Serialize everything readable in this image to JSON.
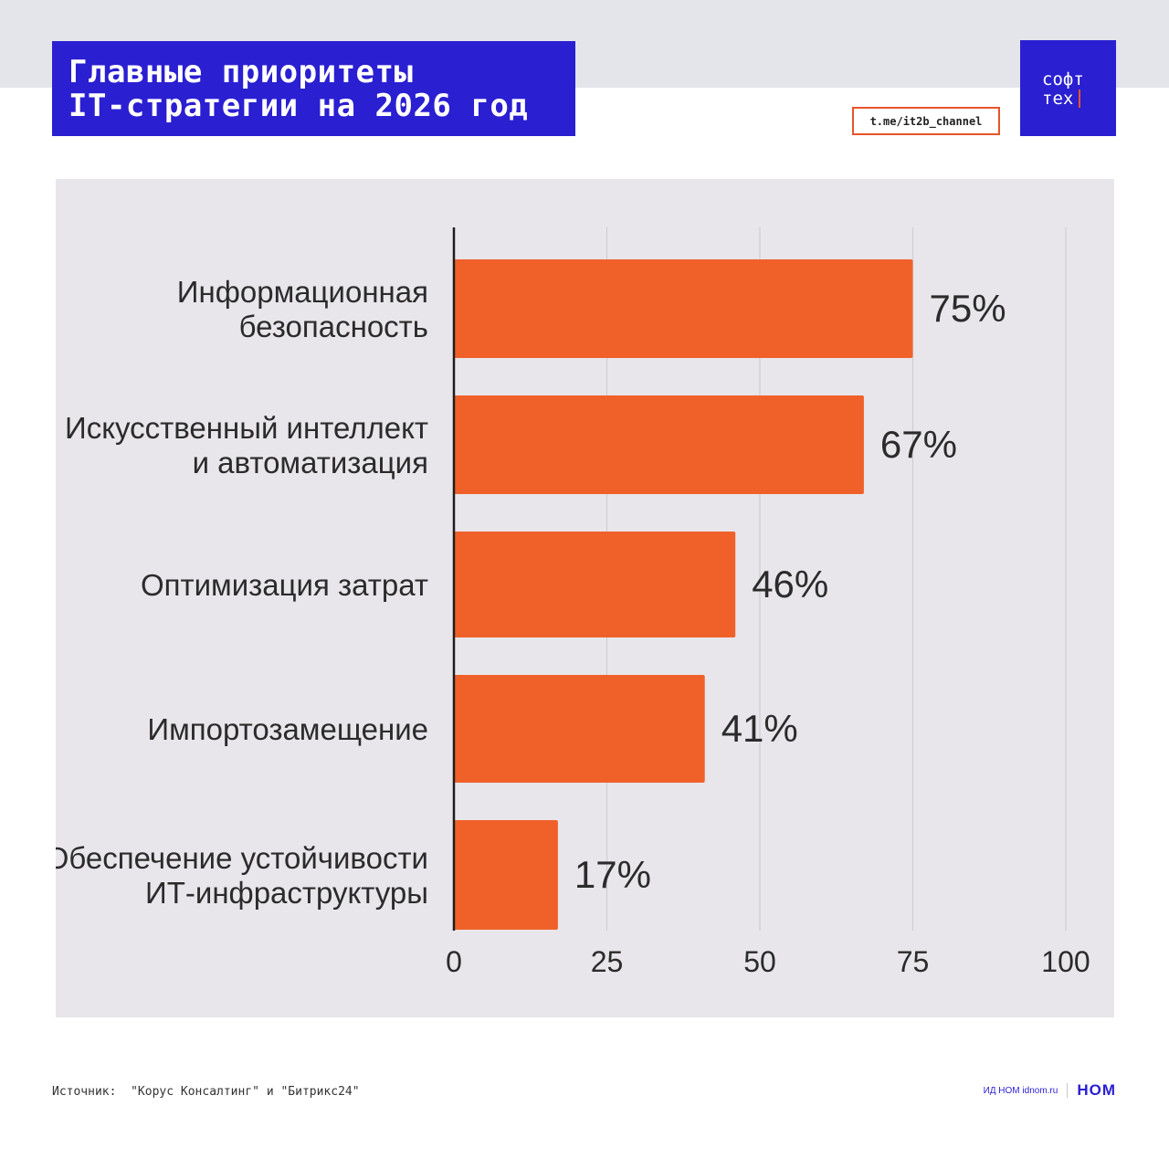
{
  "header": {
    "title_line1": "Главные приоритеты",
    "title_line2": "IT-стратегии на 2026 год",
    "channel": "t.me/it2b_channel",
    "logo_line1": "софт",
    "logo_line2": "тех"
  },
  "colors": {
    "brand": "#2a1fd1",
    "accent": "#e8542a",
    "bar": "#f0612a",
    "panel": "#e8e6ea"
  },
  "chart_data": {
    "type": "bar",
    "orientation": "horizontal",
    "categories": [
      [
        "Информационная",
        "безопасность"
      ],
      [
        "Искусственный интеллект",
        "и автоматизация"
      ],
      [
        "Оптимизация затрат"
      ],
      [
        "Импортозамещение"
      ],
      [
        "Обеспечение устойчивости",
        "ИТ-инфраструктуры"
      ]
    ],
    "values": [
      75,
      67,
      46,
      41,
      17
    ],
    "value_labels": [
      "75%",
      "67%",
      "46%",
      "41%",
      "17%"
    ],
    "xlim": [
      0,
      100
    ],
    "xticks": [
      0,
      25,
      50,
      75,
      100
    ],
    "grid": true
  },
  "footer": {
    "source_label": "Источник:",
    "source_text": "\"Корус Консалтинг\" и \"Битрикс24\"",
    "publisher": "ИД НОМ idnom.ru",
    "publisher_logo": "НОМ"
  }
}
